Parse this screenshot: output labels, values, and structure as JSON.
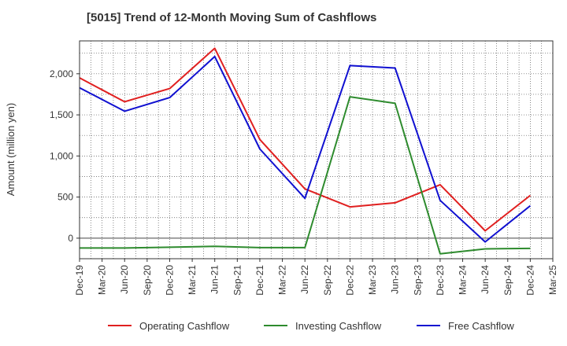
{
  "chart_data": {
    "type": "line",
    "title": "[5015]  Trend of 12-Month Moving Sum of Cashflows",
    "xlabel": "",
    "ylabel": "Amount (million yen)",
    "ylim": [
      -250,
      2400
    ],
    "grid": true,
    "legend_position": "bottom",
    "categories": [
      "Dec-19",
      "Mar-20",
      "Jun-20",
      "Sep-20",
      "Dec-20",
      "Mar-21",
      "Jun-21",
      "Sep-21",
      "Dec-21",
      "Mar-22",
      "Jun-22",
      "Sep-22",
      "Dec-22",
      "Mar-23",
      "Jun-23",
      "Sep-23",
      "Dec-23",
      "Mar-24",
      "Jun-24",
      "Sep-24",
      "Dec-24",
      "Mar-25"
    ],
    "y_ticks": [
      0,
      500,
      1000,
      1500,
      2000
    ],
    "y_tick_labels": [
      "0",
      "500",
      "1,000",
      "1,500",
      "2,000"
    ],
    "series": [
      {
        "name": "Operating Cashflow",
        "color": "#e02020",
        "points": [
          [
            "Dec-19",
            1950
          ],
          [
            "Jun-20",
            1660
          ],
          [
            "Dec-20",
            1820
          ],
          [
            "Jun-21",
            2310
          ],
          [
            "Dec-21",
            1200
          ],
          [
            "Jun-22",
            600
          ],
          [
            "Dec-22",
            380
          ],
          [
            "Jun-23",
            430
          ],
          [
            "Dec-23",
            650
          ],
          [
            "Jun-24",
            90
          ],
          [
            "Dec-24",
            520
          ]
        ]
      },
      {
        "name": "Investing Cashflow",
        "color": "#2e8b2e",
        "points": [
          [
            "Dec-19",
            -120
          ],
          [
            "Jun-20",
            -120
          ],
          [
            "Dec-20",
            -110
          ],
          [
            "Jun-21",
            -100
          ],
          [
            "Dec-21",
            -115
          ],
          [
            "Jun-22",
            -115
          ],
          [
            "Dec-22",
            1720
          ],
          [
            "Jun-23",
            1640
          ],
          [
            "Dec-23",
            -190
          ],
          [
            "Jun-24",
            -130
          ],
          [
            "Dec-24",
            -125
          ]
        ]
      },
      {
        "name": "Free Cashflow",
        "color": "#1010d0",
        "points": [
          [
            "Dec-19",
            1830
          ],
          [
            "Jun-20",
            1545
          ],
          [
            "Dec-20",
            1710
          ],
          [
            "Jun-21",
            2210
          ],
          [
            "Dec-21",
            1085
          ],
          [
            "Jun-22",
            485
          ],
          [
            "Dec-22",
            2100
          ],
          [
            "Jun-23",
            2070
          ],
          [
            "Dec-23",
            460
          ],
          [
            "Jun-24",
            -45
          ],
          [
            "Dec-24",
            395
          ]
        ]
      }
    ]
  }
}
